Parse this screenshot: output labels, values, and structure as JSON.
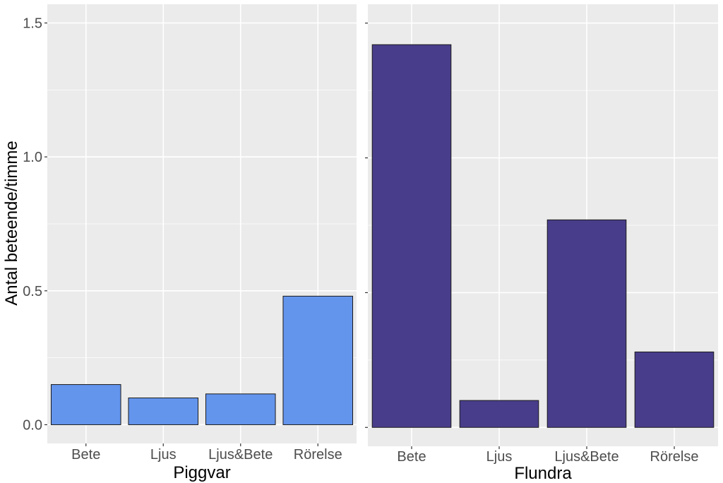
{
  "chart_data": [
    {
      "type": "bar",
      "categories": [
        "Bete",
        "Ljus",
        "Ljus&Bete",
        "Rörelse"
      ],
      "values": [
        0.15,
        0.1,
        0.115,
        0.48
      ],
      "xlabel": "Piggvar",
      "ylabel": "Antal beteende/timme",
      "ylim": [
        -0.07,
        1.57
      ],
      "yticks": [
        0.0,
        0.5,
        1.0,
        1.5
      ],
      "ytick_labels": [
        "0.0",
        "0.5",
        "1.0",
        "1.5"
      ],
      "bar_color": "#6495ed",
      "background": "#ebebeb",
      "grid": true
    },
    {
      "type": "bar",
      "categories": [
        "Bete",
        "Ljus",
        "Ljus&Bete",
        "Rörelse"
      ],
      "values": [
        1.42,
        0.1,
        0.77,
        0.28
      ],
      "xlabel": "Flundra",
      "ylim": [
        -0.07,
        1.57
      ],
      "bar_color": "#483d8b",
      "background": "#ebebeb",
      "grid": true
    }
  ]
}
